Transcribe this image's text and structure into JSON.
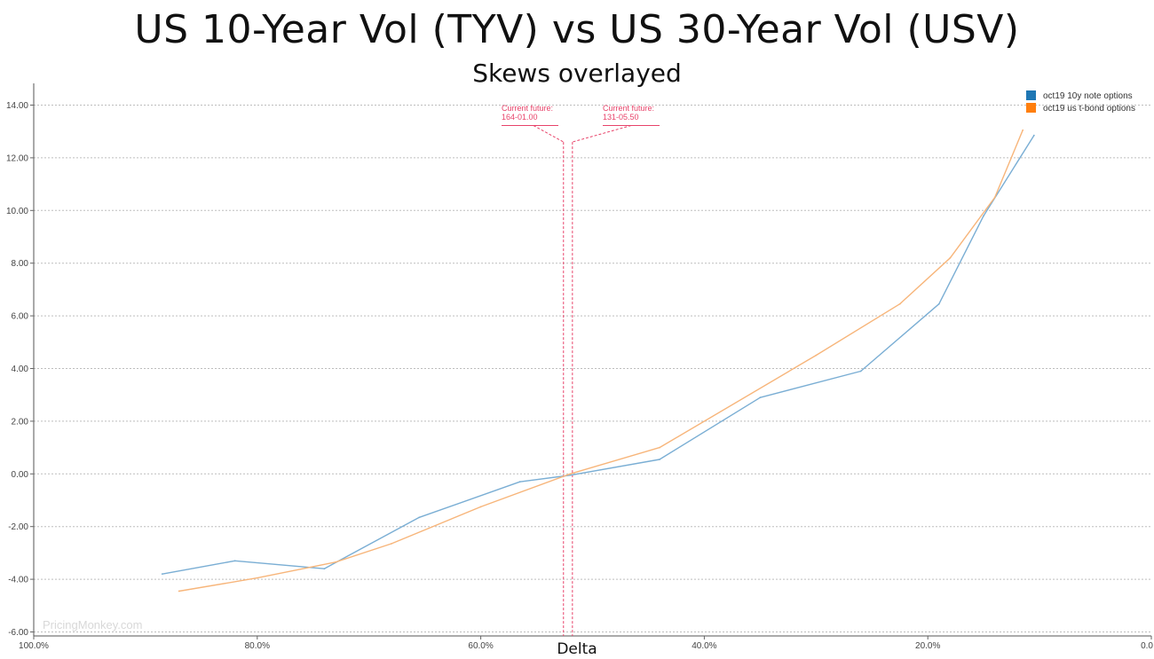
{
  "chart_data": {
    "type": "line",
    "title": "US 10-Year Vol (TYV) vs US 30-Year Vol (USV)",
    "subtitle": "Skews overlayed",
    "xlabel": "Delta",
    "ylabel": "",
    "x_reversed": true,
    "xlim": [
      100,
      0
    ],
    "ylim": [
      -6,
      14
    ],
    "x_ticks": [
      "100.0%",
      "80.0%",
      "60.0%",
      "40.0%",
      "20.0%",
      "0.0"
    ],
    "y_ticks": [
      "14.00",
      "12.00",
      "10.00",
      "8.00",
      "6.00",
      "4.00",
      "2.00",
      "0.00",
      "-2.00",
      "-4.00",
      "-6.00"
    ],
    "grid": true,
    "legend_position": "top-right",
    "series": [
      {
        "name": "oct19 10y note options",
        "color": "#1f77b4",
        "line_color": "#7aaed4",
        "points": [
          [
            88.5,
            -3.8
          ],
          [
            82.0,
            -3.3
          ],
          [
            74.0,
            -3.6
          ],
          [
            65.5,
            -1.65
          ],
          [
            56.5,
            -0.3
          ],
          [
            52.0,
            -0.05
          ],
          [
            44.0,
            0.55
          ],
          [
            35.0,
            2.9
          ],
          [
            26.0,
            3.9
          ],
          [
            19.0,
            6.45
          ],
          [
            15.0,
            9.8
          ],
          [
            10.5,
            12.85
          ]
        ]
      },
      {
        "name": "oct19 us t-bond options",
        "color": "#ff7f0e",
        "line_color": "#f7b57a",
        "points": [
          [
            87.0,
            -4.45
          ],
          [
            80.0,
            -3.95
          ],
          [
            73.0,
            -3.35
          ],
          [
            68.0,
            -2.65
          ],
          [
            60.0,
            -1.25
          ],
          [
            52.0,
            0.0
          ],
          [
            44.0,
            1.0
          ],
          [
            30.0,
            4.5
          ],
          [
            22.5,
            6.45
          ],
          [
            18.0,
            8.2
          ],
          [
            14.0,
            10.5
          ],
          [
            11.5,
            13.05
          ]
        ]
      }
    ],
    "annotations": [
      {
        "label": "Current future:",
        "value": "164-01.00",
        "x": 52.6
      },
      {
        "label": "Current future:",
        "value": "131-05.50",
        "x": 51.8
      }
    ],
    "watermark": "PricingMonkey.com"
  }
}
